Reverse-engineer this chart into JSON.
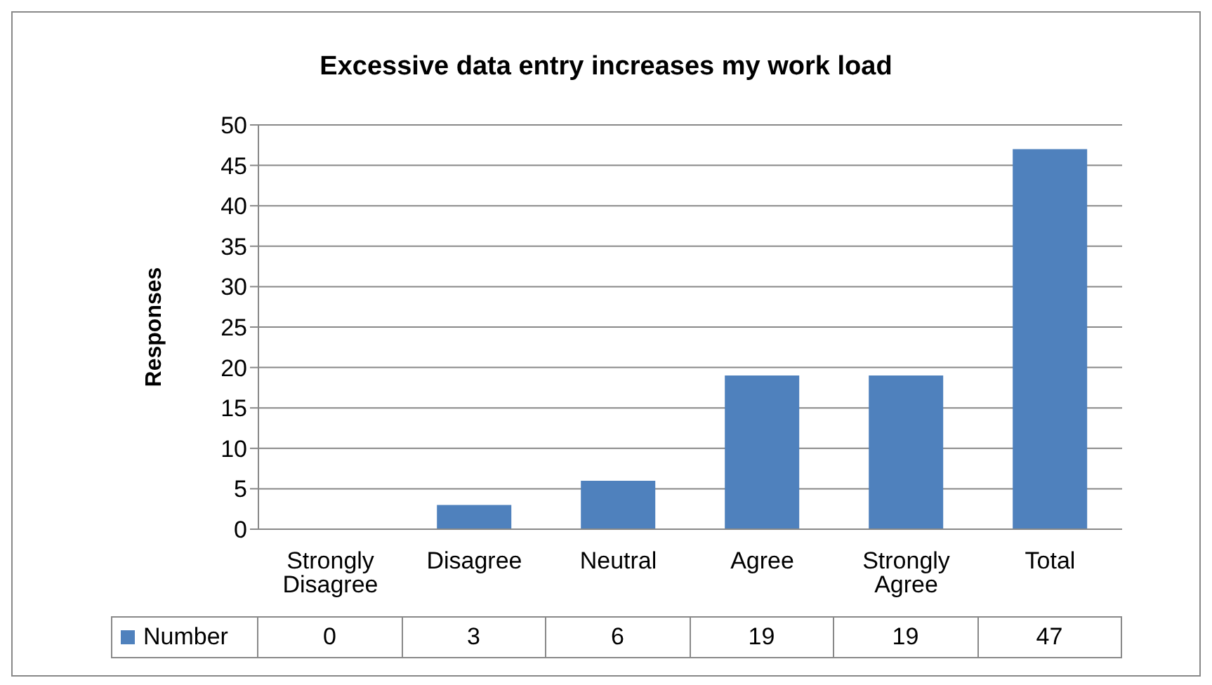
{
  "chart_data": {
    "type": "bar",
    "title": "Excessive data entry increases my work load",
    "ylabel": "Responses",
    "categories": [
      "Strongly Disagree",
      "Disagree",
      "Neutral",
      "Agree",
      "Strongly Agree",
      "Total"
    ],
    "series": [
      {
        "name": "Number",
        "color": "#4f81bd",
        "values": [
          0,
          3,
          6,
          19,
          19,
          47
        ]
      }
    ],
    "ylim": [
      0,
      50
    ],
    "yticks": [
      0,
      5,
      10,
      15,
      20,
      25,
      30,
      35,
      40,
      45,
      50
    ],
    "grid": "y",
    "legend": "bottom",
    "data_labels": true
  }
}
